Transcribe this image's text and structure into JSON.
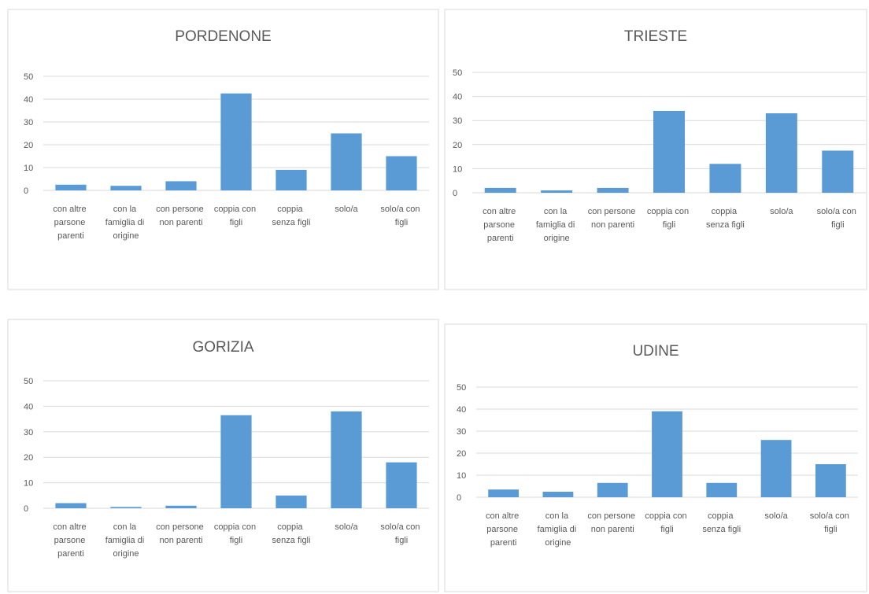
{
  "chart_data": [
    {
      "type": "bar",
      "title": "PORDENONE",
      "categories": [
        "con altre parsone parenti",
        "con la famiglia di origine",
        "con persone non parenti",
        "coppia con figli",
        "coppia senza figli",
        "solo/a",
        "solo/a con figli"
      ],
      "values": [
        2.5,
        2,
        4,
        42.5,
        9,
        25,
        15
      ],
      "color": "#5b9bd5",
      "ylim": [
        0,
        50
      ],
      "yticks": [
        0,
        10,
        20,
        30,
        40,
        50
      ],
      "grid": true
    },
    {
      "type": "bar",
      "title": "TRIESTE",
      "categories": [
        "con altre parsone parenti",
        "con la famiglia di origine",
        "con persone non parenti",
        "coppia con figli",
        "coppia senza figli",
        "solo/a",
        "solo/a con figli"
      ],
      "values": [
        2,
        1,
        2,
        34,
        12,
        33,
        17.5
      ],
      "color": "#5b9bd5",
      "ylim": [
        0,
        50
      ],
      "yticks": [
        0,
        10,
        20,
        30,
        40,
        50
      ],
      "grid": true
    },
    {
      "type": "bar",
      "title": "GORIZIA",
      "categories": [
        "con altre parsone parenti",
        "con la famiglia di origine",
        "con persone non parenti",
        "coppia con figli",
        "coppia senza figli",
        "solo/a",
        "solo/a con figli"
      ],
      "values": [
        2,
        0.5,
        1,
        36.5,
        5,
        38,
        18
      ],
      "color": "#5b9bd5",
      "ylim": [
        0,
        50
      ],
      "yticks": [
        0,
        10,
        20,
        30,
        40,
        50
      ],
      "grid": true
    },
    {
      "type": "bar",
      "title": "UDINE",
      "categories": [
        "con altre parsone parenti",
        "con la famiglia di origine",
        "con persone non parenti",
        "coppia con figli",
        "coppia senza figli",
        "solo/a",
        "solo/a con figli"
      ],
      "values": [
        3.5,
        2.5,
        6.5,
        39,
        6.5,
        26,
        15
      ],
      "color": "#5b9bd5",
      "ylim": [
        0,
        50
      ],
      "yticks": [
        0,
        10,
        20,
        30,
        40,
        50
      ],
      "grid": true
    }
  ]
}
